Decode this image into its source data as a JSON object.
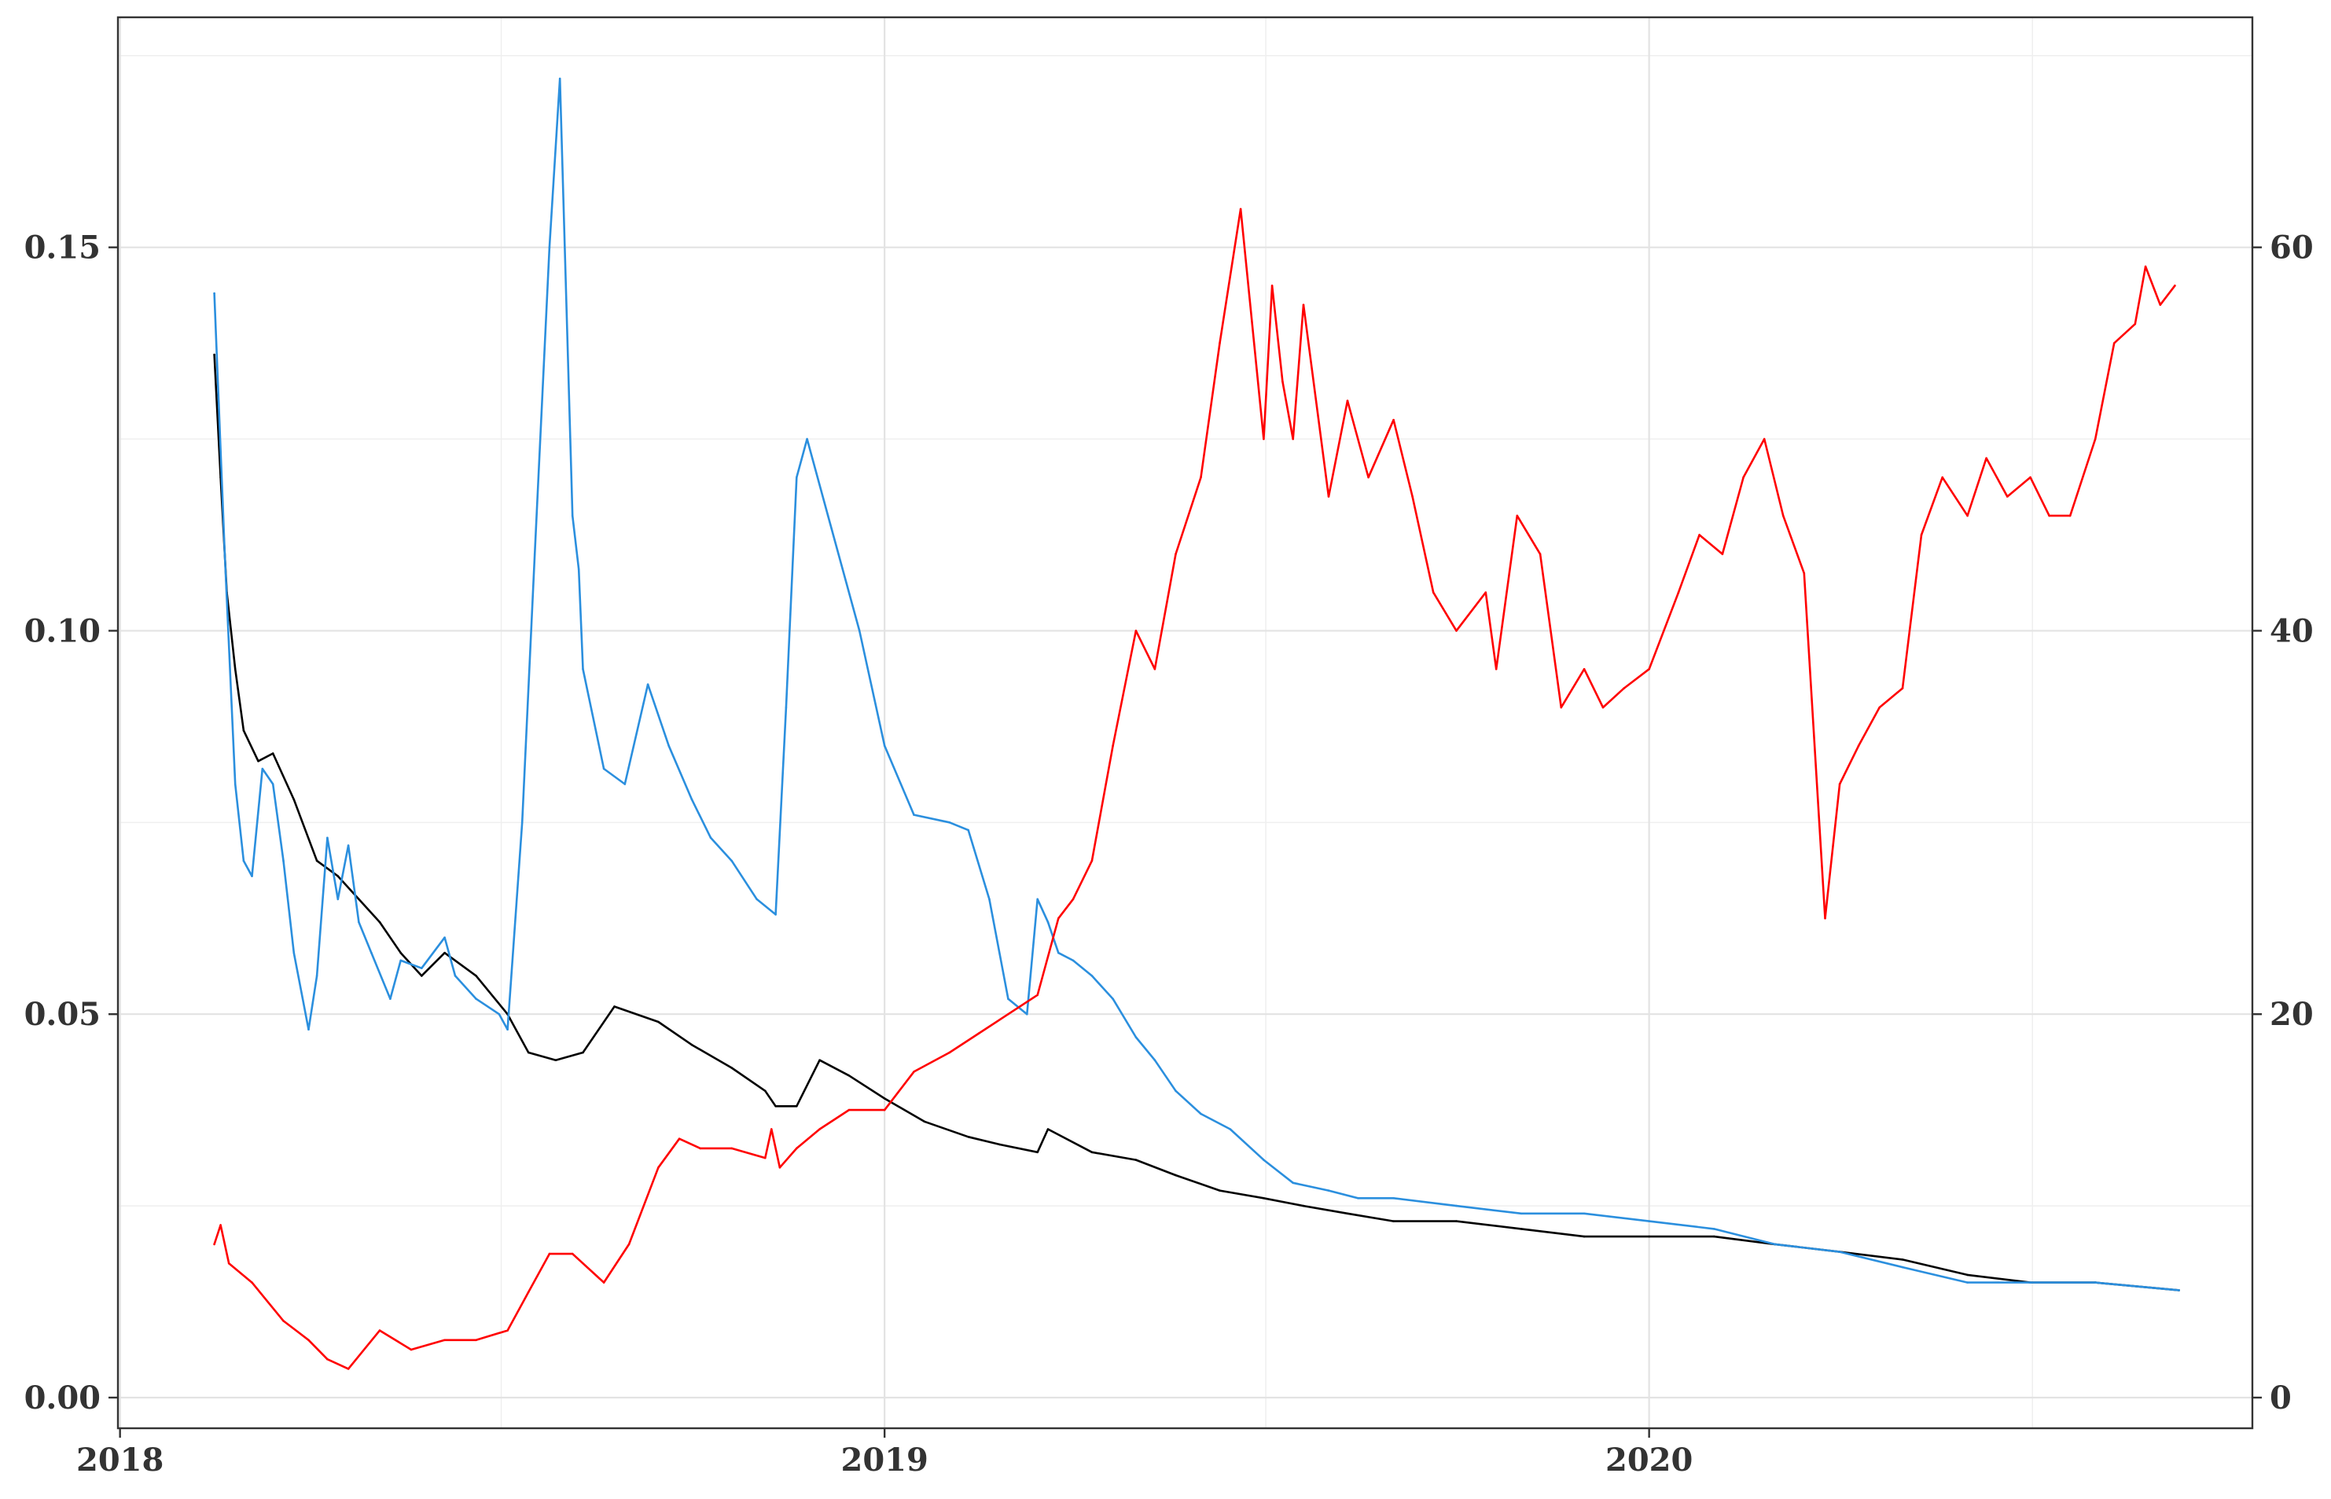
{
  "chart_data": {
    "type": "line",
    "title": "",
    "xlabel": "",
    "ylabel": "",
    "y2label": "",
    "x_axis": {
      "type": "date",
      "range": [
        "2017-12-31",
        "2020-10-15"
      ],
      "ticks": [
        {
          "value": "2018-01-01",
          "label": "2018"
        },
        {
          "value": "2019-01-01",
          "label": "2019"
        },
        {
          "value": "2020-01-01",
          "label": "2020"
        }
      ],
      "minor_gridlines": [
        "2018-07-02",
        "2019-07-02",
        "2020-07-02"
      ]
    },
    "y_left": {
      "range": [
        -0.004,
        0.18
      ],
      "ticks": [
        0.0,
        0.05,
        0.1,
        0.15
      ],
      "tick_labels": [
        "0.00",
        "0.05",
        "0.10",
        "0.15"
      ],
      "minor_gridlines": [
        0.025,
        0.075,
        0.125,
        0.175
      ]
    },
    "y_right": {
      "range": [
        -1.6,
        72.0
      ],
      "ticks": [
        0,
        20,
        40,
        60
      ],
      "tick_labels": [
        "0",
        "20",
        "40",
        "60"
      ]
    },
    "grid": true,
    "legend": "none",
    "colors": {
      "black": "#000000",
      "blue": "#2b8fde",
      "red": "#ff0000"
    },
    "series": [
      {
        "color": "#000000",
        "axis": "left",
        "x": [
          "2018-02-15",
          "2018-02-18",
          "2018-02-21",
          "2018-02-25",
          "2018-03-01",
          "2018-03-08",
          "2018-03-15",
          "2018-03-25",
          "2018-04-05",
          "2018-04-15",
          "2018-04-25",
          "2018-05-05",
          "2018-05-15",
          "2018-05-25",
          "2018-06-05",
          "2018-06-20",
          "2018-07-05",
          "2018-07-15",
          "2018-07-28",
          "2018-08-10",
          "2018-08-25",
          "2018-09-15",
          "2018-10-01",
          "2018-10-20",
          "2018-11-05",
          "2018-11-10",
          "2018-11-20",
          "2018-12-01",
          "2018-12-15",
          "2019-01-01",
          "2019-01-20",
          "2019-02-10",
          "2019-02-25",
          "2019-03-15",
          "2019-03-20",
          "2019-04-10",
          "2019-05-01",
          "2019-05-20",
          "2019-06-10",
          "2019-07-01",
          "2019-07-20",
          "2019-08-10",
          "2019-09-01",
          "2019-10-01",
          "2019-11-01",
          "2019-12-01",
          "2020-01-01",
          "2020-02-01",
          "2020-03-01",
          "2020-04-01",
          "2020-05-01",
          "2020-06-01",
          "2020-07-01",
          "2020-08-01",
          "2020-09-10"
        ],
        "y": [
          0.136,
          0.12,
          0.105,
          0.095,
          0.087,
          0.083,
          0.084,
          0.078,
          0.07,
          0.068,
          0.065,
          0.062,
          0.058,
          0.055,
          0.058,
          0.055,
          0.05,
          0.045,
          0.044,
          0.045,
          0.051,
          0.049,
          0.046,
          0.043,
          0.04,
          0.038,
          0.038,
          0.044,
          0.042,
          0.039,
          0.036,
          0.034,
          0.033,
          0.032,
          0.035,
          0.032,
          0.031,
          0.029,
          0.027,
          0.026,
          0.025,
          0.024,
          0.023,
          0.023,
          0.022,
          0.021,
          0.021,
          0.021,
          0.02,
          0.019,
          0.018,
          0.016,
          0.015,
          0.015,
          0.014
        ]
      },
      {
        "color": "#2b8fde",
        "axis": "left",
        "x": [
          "2018-02-15",
          "2018-02-20",
          "2018-02-25",
          "2018-03-01",
          "2018-03-05",
          "2018-03-10",
          "2018-03-15",
          "2018-03-20",
          "2018-03-25",
          "2018-04-01",
          "2018-04-05",
          "2018-04-10",
          "2018-04-15",
          "2018-04-20",
          "2018-04-25",
          "2018-05-01",
          "2018-05-10",
          "2018-05-15",
          "2018-05-25",
          "2018-06-05",
          "2018-06-10",
          "2018-06-20",
          "2018-07-01",
          "2018-07-05",
          "2018-07-12",
          "2018-07-18",
          "2018-07-25",
          "2018-07-30",
          "2018-08-05",
          "2018-08-08",
          "2018-08-10",
          "2018-08-20",
          "2018-08-30",
          "2018-09-10",
          "2018-09-20",
          "2018-10-01",
          "2018-10-10",
          "2018-10-20",
          "2018-11-01",
          "2018-11-10",
          "2018-11-15",
          "2018-11-20",
          "2018-11-25",
          "2018-12-05",
          "2018-12-20",
          "2019-01-01",
          "2019-01-15",
          "2019-02-01",
          "2019-02-10",
          "2019-02-20",
          "2019-03-01",
          "2019-03-10",
          "2019-03-15",
          "2019-03-20",
          "2019-03-25",
          "2019-04-01",
          "2019-04-10",
          "2019-04-20",
          "2019-05-01",
          "2019-05-10",
          "2019-05-20",
          "2019-06-01",
          "2019-06-15",
          "2019-07-01",
          "2019-07-15",
          "2019-08-01",
          "2019-08-15",
          "2019-09-01",
          "2019-10-01",
          "2019-11-01",
          "2019-12-01",
          "2020-01-01",
          "2020-02-01",
          "2020-03-01",
          "2020-04-01",
          "2020-05-01",
          "2020-06-01",
          "2020-07-01",
          "2020-08-01",
          "2020-09-10"
        ],
        "y": [
          0.144,
          0.11,
          0.08,
          0.07,
          0.068,
          0.082,
          0.08,
          0.07,
          0.058,
          0.048,
          0.055,
          0.073,
          0.065,
          0.072,
          0.062,
          0.058,
          0.052,
          0.057,
          0.056,
          0.06,
          0.055,
          0.052,
          0.05,
          0.048,
          0.075,
          0.11,
          0.15,
          0.172,
          0.115,
          0.108,
          0.095,
          0.082,
          0.08,
          0.093,
          0.085,
          0.078,
          0.073,
          0.07,
          0.065,
          0.063,
          0.09,
          0.12,
          0.125,
          0.115,
          0.1,
          0.085,
          0.076,
          0.075,
          0.074,
          0.065,
          0.052,
          0.05,
          0.065,
          0.062,
          0.058,
          0.057,
          0.055,
          0.052,
          0.047,
          0.044,
          0.04,
          0.037,
          0.035,
          0.031,
          0.028,
          0.027,
          0.026,
          0.026,
          0.025,
          0.024,
          0.024,
          0.023,
          0.022,
          0.02,
          0.019,
          0.017,
          0.015,
          0.015,
          0.015,
          0.014
        ]
      },
      {
        "color": "#ff0000",
        "axis": "right",
        "x": [
          "2018-02-15",
          "2018-02-18",
          "2018-02-22",
          "2018-03-05",
          "2018-03-20",
          "2018-04-01",
          "2018-04-10",
          "2018-04-20",
          "2018-05-05",
          "2018-05-20",
          "2018-06-05",
          "2018-06-20",
          "2018-07-05",
          "2018-07-15",
          "2018-07-25",
          "2018-08-05",
          "2018-08-20",
          "2018-09-01",
          "2018-09-15",
          "2018-09-25",
          "2018-10-05",
          "2018-10-20",
          "2018-11-05",
          "2018-11-08",
          "2018-11-12",
          "2018-11-20",
          "2018-12-01",
          "2018-12-15",
          "2019-01-01",
          "2019-01-15",
          "2019-02-01",
          "2019-02-15",
          "2019-03-01",
          "2019-03-15",
          "2019-03-25",
          "2019-04-01",
          "2019-04-10",
          "2019-04-20",
          "2019-05-01",
          "2019-05-10",
          "2019-05-20",
          "2019-06-01",
          "2019-06-10",
          "2019-06-20",
          "2019-07-01",
          "2019-07-05",
          "2019-07-10",
          "2019-07-15",
          "2019-07-20",
          "2019-08-01",
          "2019-08-10",
          "2019-08-20",
          "2019-09-01",
          "2019-09-10",
          "2019-09-20",
          "2019-10-01",
          "2019-10-15",
          "2019-10-20",
          "2019-10-30",
          "2019-11-10",
          "2019-11-20",
          "2019-12-01",
          "2019-12-10",
          "2019-12-20",
          "2020-01-01",
          "2020-01-15",
          "2020-01-25",
          "2020-02-05",
          "2020-02-15",
          "2020-02-25",
          "2020-03-05",
          "2020-03-15",
          "2020-03-25",
          "2020-04-01",
          "2020-04-10",
          "2020-04-20",
          "2020-05-01",
          "2020-05-10",
          "2020-05-20",
          "2020-06-01",
          "2020-06-10",
          "2020-06-20",
          "2020-07-01",
          "2020-07-10",
          "2020-07-20",
          "2020-08-01",
          "2020-08-10",
          "2020-08-20",
          "2020-08-25",
          "2020-09-01",
          "2020-09-08"
        ],
        "y": [
          8,
          9,
          7,
          6,
          4,
          3,
          2,
          1.5,
          3.5,
          2.5,
          3,
          3,
          3.5,
          5.5,
          7.5,
          7.5,
          6,
          8,
          12,
          13.5,
          13,
          13,
          12.5,
          14,
          12,
          13,
          14,
          15,
          15,
          17,
          18,
          19,
          20,
          21,
          25,
          26,
          28,
          34,
          40,
          38,
          44,
          48,
          55,
          62,
          50,
          58,
          53,
          50,
          57,
          47,
          52,
          48,
          51,
          47,
          42,
          40,
          42,
          38,
          46,
          44,
          36,
          38,
          36,
          37,
          38,
          42,
          45,
          44,
          48,
          50,
          46,
          43,
          25,
          32,
          34,
          36,
          37,
          45,
          48,
          46,
          49,
          47,
          48,
          46,
          46,
          50,
          55,
          56,
          59,
          57,
          58
        ]
      }
    ]
  }
}
